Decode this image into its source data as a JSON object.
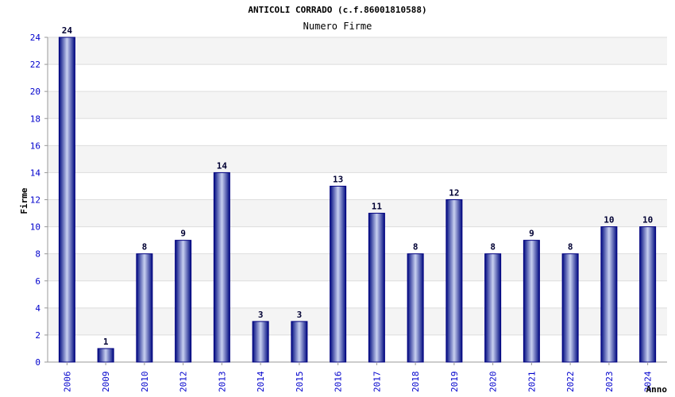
{
  "chart_data": {
    "type": "bar",
    "title": "ANTICOLI CORRADO (c.f.86001810588)",
    "subtitle": "Numero Firme",
    "xlabel": "Anno",
    "ylabel": "Firme",
    "categories": [
      "2006",
      "2009",
      "2010",
      "2012",
      "2013",
      "2014",
      "2015",
      "2016",
      "2017",
      "2018",
      "2019",
      "2020",
      "2021",
      "2022",
      "2023",
      "2024"
    ],
    "values": [
      24,
      1,
      8,
      9,
      14,
      3,
      3,
      13,
      11,
      8,
      12,
      8,
      9,
      8,
      10,
      10
    ],
    "ylim": [
      0,
      24
    ],
    "yticks": [
      "0",
      "2",
      "4",
      "6",
      "8",
      "10",
      "12",
      "14",
      "16",
      "18",
      "20",
      "22",
      "24"
    ],
    "grid": true,
    "colors": {
      "bar_edge": "#000080",
      "bar_mid": "#c8d0f0",
      "band": "#f4f4f4",
      "grid": "#dddddd",
      "tick_text": "#0000cc"
    }
  }
}
